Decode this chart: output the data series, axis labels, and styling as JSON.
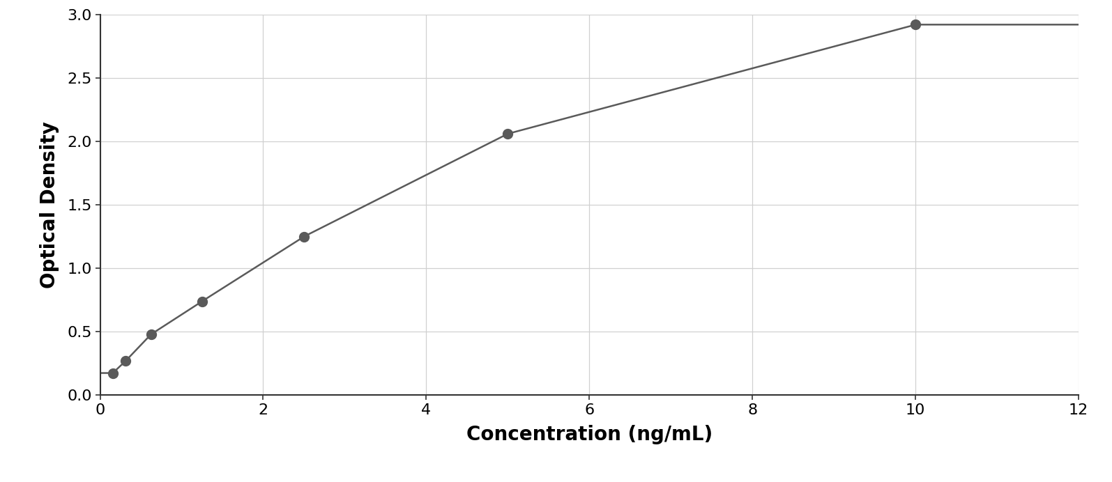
{
  "x_data": [
    0.156,
    0.313,
    0.625,
    1.25,
    2.5,
    5.0,
    10.0
  ],
  "y_data": [
    0.175,
    0.27,
    0.48,
    0.74,
    1.25,
    2.06,
    2.92
  ],
  "xlabel": "Concentration (ng/mL)",
  "ylabel": "Optical Density",
  "xlim": [
    0,
    12
  ],
  "ylim": [
    0,
    3
  ],
  "xticks": [
    0,
    2,
    4,
    6,
    8,
    10,
    12
  ],
  "yticks": [
    0,
    0.5,
    1.0,
    1.5,
    2.0,
    2.5,
    3.0
  ],
  "data_color": "#5a5a5a",
  "line_color": "#5a5a5a",
  "background_color": "#ffffff",
  "grid_color": "#d0d0d0",
  "marker_size": 10,
  "line_width": 1.8,
  "xlabel_fontsize": 20,
  "ylabel_fontsize": 20,
  "tick_fontsize": 16,
  "figure_bg": "#ffffff"
}
